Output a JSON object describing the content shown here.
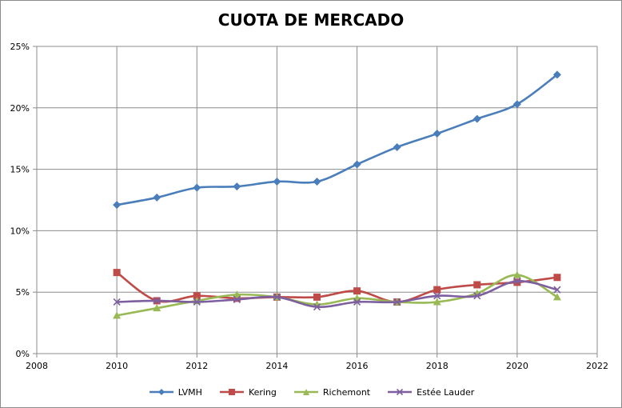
{
  "chart_data": {
    "type": "line",
    "title": "CUOTA DE MERCADO",
    "xlabel": "",
    "ylabel": "",
    "xlim": [
      2008,
      2022
    ],
    "ylim": [
      0,
      0.25
    ],
    "x_ticks": [
      "2008",
      "2010",
      "2012",
      "2014",
      "2016",
      "2018",
      "2020",
      "2022"
    ],
    "y_ticks": [
      "0%",
      "5%",
      "10%",
      "15%",
      "20%",
      "25%"
    ],
    "grid": true,
    "legend_position": "bottom",
    "x": [
      2010,
      2011,
      2012,
      2013,
      2014,
      2015,
      2016,
      2017,
      2018,
      2019,
      2020,
      2021
    ],
    "series": [
      {
        "name": "LVMH",
        "color": "#4a7ebb",
        "marker": "diamond",
        "values": [
          0.121,
          0.127,
          0.135,
          0.136,
          0.14,
          0.14,
          0.154,
          0.168,
          0.179,
          0.191,
          0.203,
          0.227
        ]
      },
      {
        "name": "Kering",
        "color": "#be4b48",
        "marker": "square",
        "values": [
          0.066,
          0.043,
          0.047,
          0.045,
          0.046,
          0.046,
          0.051,
          0.042,
          0.052,
          0.056,
          0.058,
          0.062
        ]
      },
      {
        "name": "Richemont",
        "color": "#98b954",
        "marker": "triangle",
        "values": [
          0.031,
          0.037,
          0.043,
          0.048,
          0.046,
          0.04,
          0.045,
          0.042,
          0.042,
          0.049,
          0.064,
          0.046
        ]
      },
      {
        "name": "Estée Lauder",
        "color": "#7d5fa0",
        "marker": "x",
        "values": [
          0.042,
          0.043,
          0.042,
          0.044,
          0.046,
          0.038,
          0.042,
          0.042,
          0.047,
          0.047,
          0.059,
          0.052
        ]
      }
    ]
  }
}
